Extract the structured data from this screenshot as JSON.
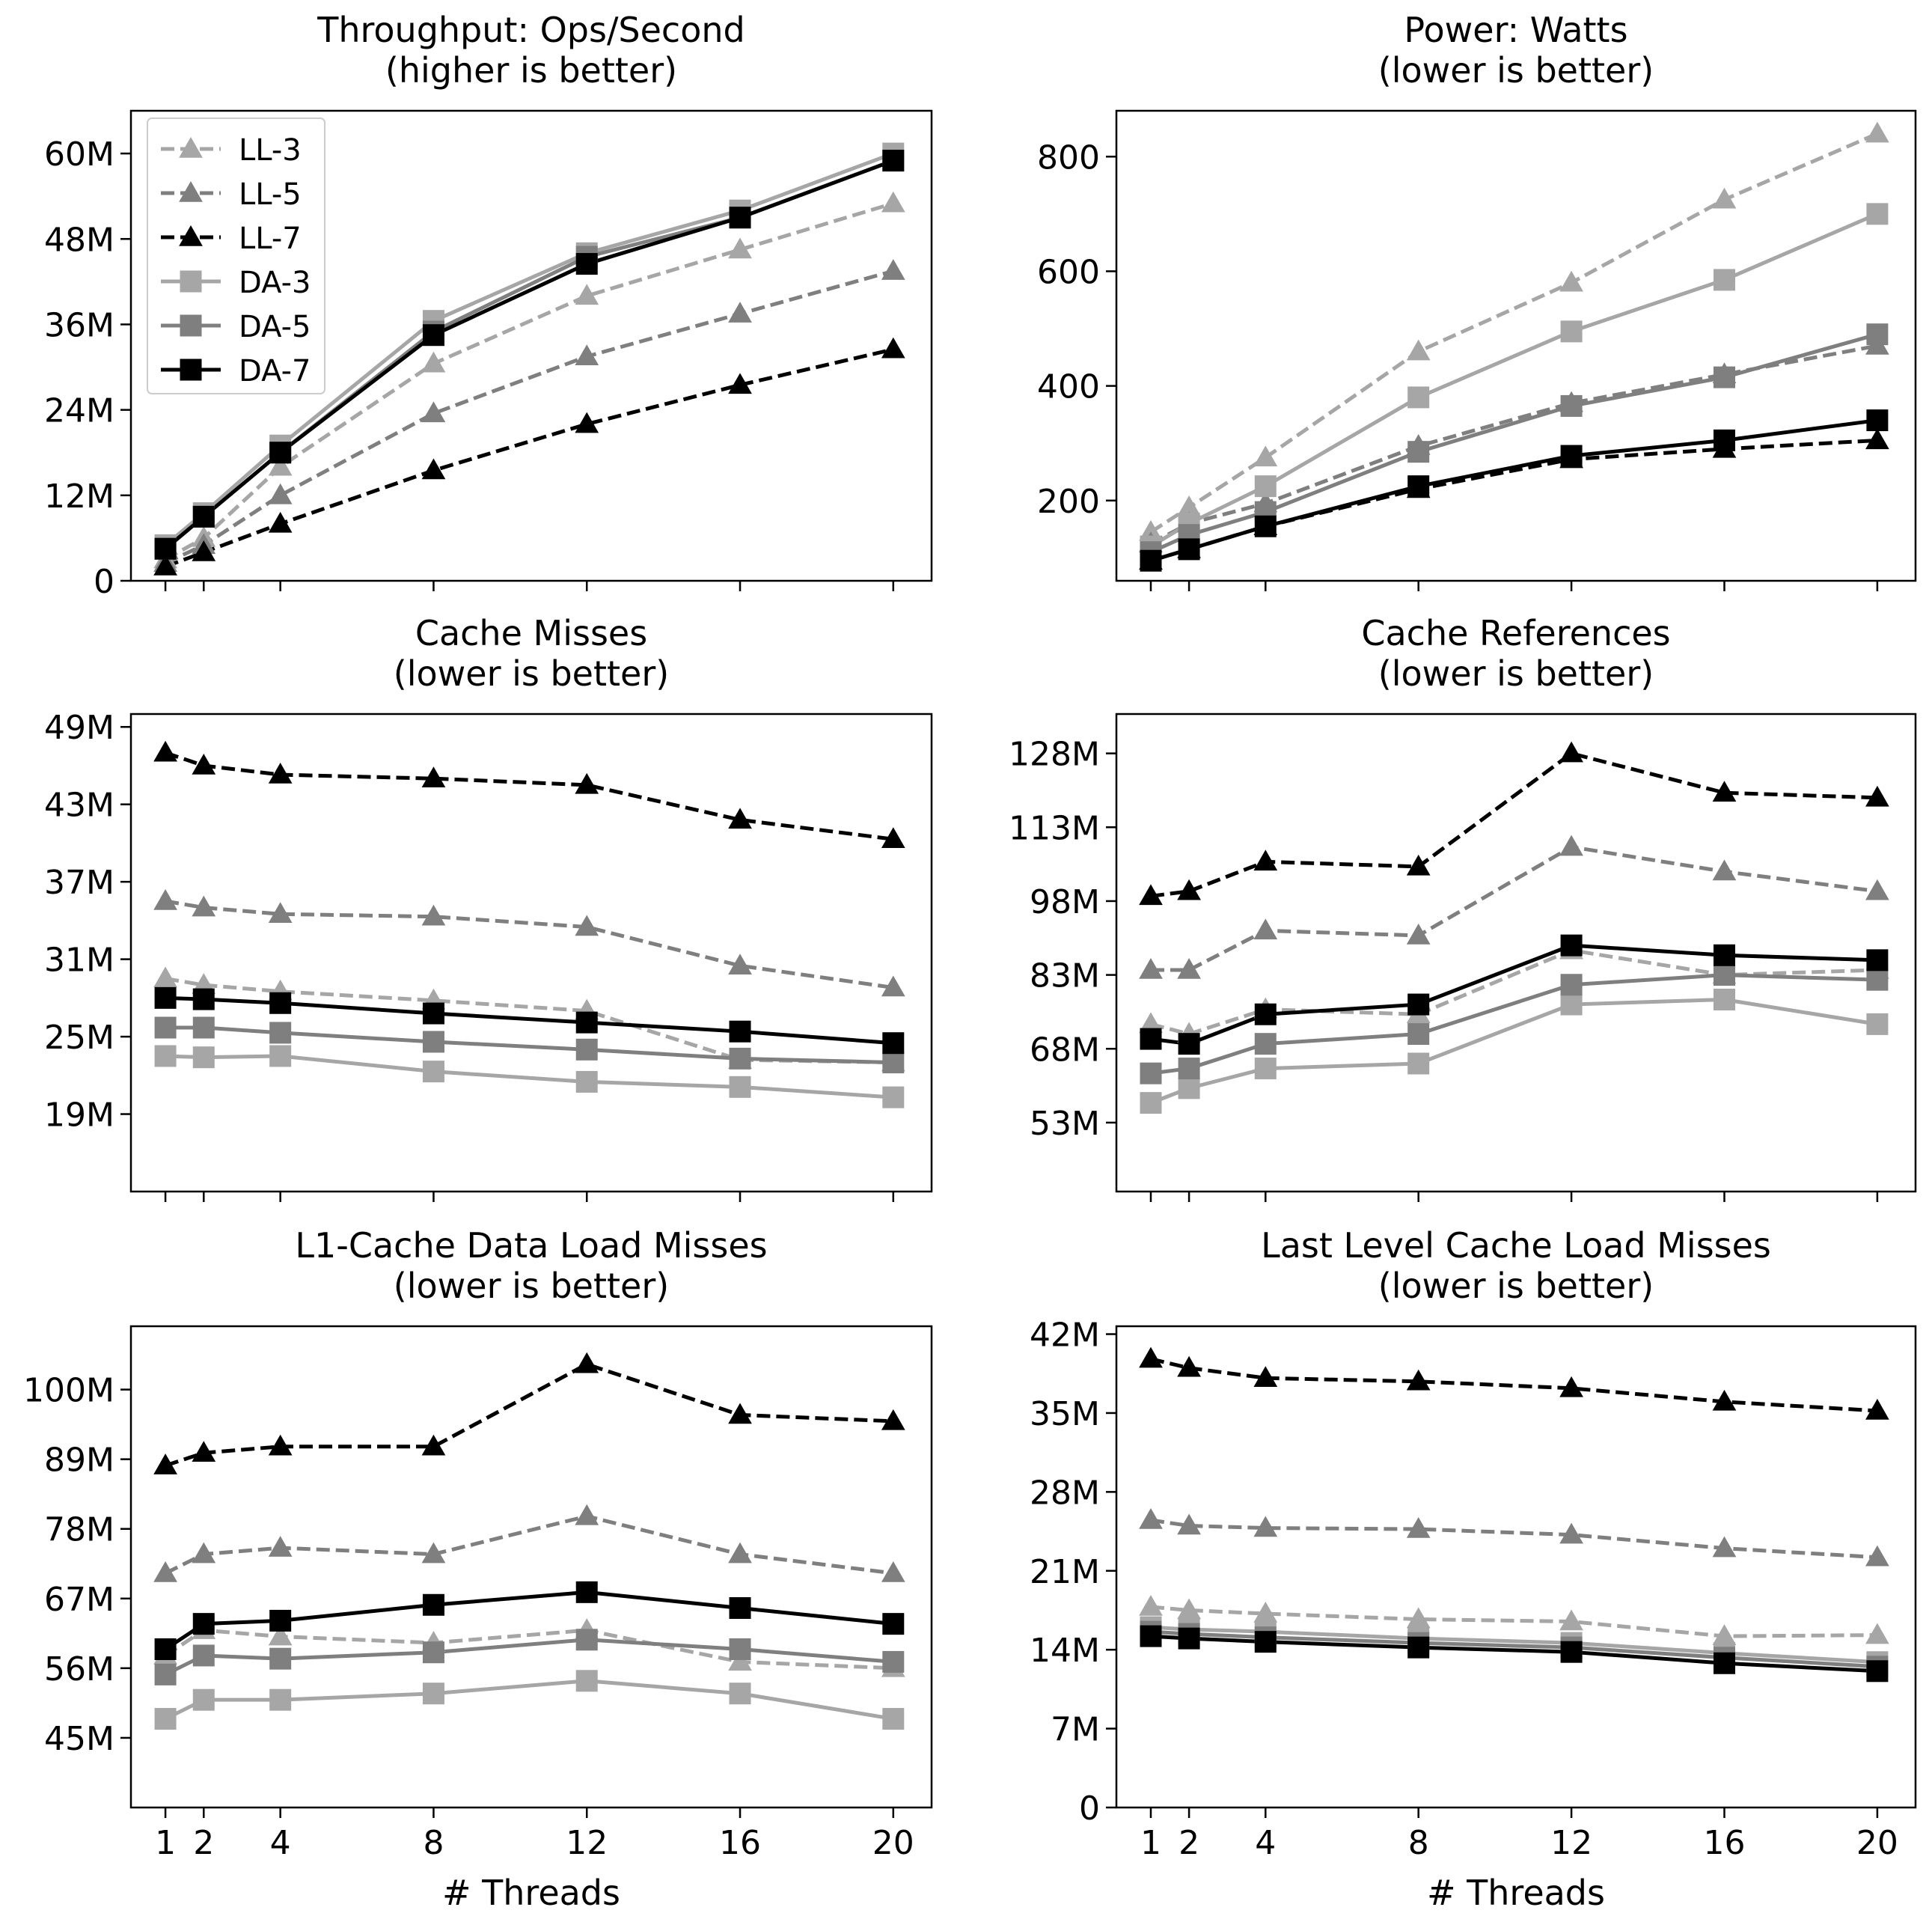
{
  "figure": {
    "xlabel": "# Threads",
    "x_ticks": [
      "1",
      "2",
      "4",
      "8",
      "12",
      "16",
      "20"
    ],
    "legend": [
      "LL-3",
      "LL-5",
      "LL-7",
      "DA-3",
      "DA-5",
      "DA-7"
    ]
  },
  "series_style": {
    "LL-3": {
      "color": "#a6a6a6",
      "dash": true,
      "marker": "triangle"
    },
    "LL-5": {
      "color": "#7f7f7f",
      "dash": true,
      "marker": "triangle"
    },
    "LL-7": {
      "color": "#000000",
      "dash": true,
      "marker": "triangle"
    },
    "DA-3": {
      "color": "#a6a6a6",
      "dash": false,
      "marker": "square"
    },
    "DA-5": {
      "color": "#7f7f7f",
      "dash": false,
      "marker": "square"
    },
    "DA-7": {
      "color": "#000000",
      "dash": false,
      "marker": "square"
    }
  },
  "chart_data": [
    {
      "type": "line",
      "title": "Throughput: Ops/Second",
      "subtitle": "(higher is better)",
      "x": [
        1,
        2,
        4,
        8,
        12,
        16,
        20
      ],
      "xlim": [
        0.1,
        21
      ],
      "ylim": [
        0,
        66
      ],
      "yticks": [
        0,
        12,
        24,
        36,
        48,
        60
      ],
      "ytick_labels": [
        "0",
        "12M",
        "24M",
        "36M",
        "48M",
        "60M"
      ],
      "legend_position": "upper-left",
      "series": [
        {
          "name": "LL-3",
          "values": [
            3.0,
            6.0,
            16.0,
            30.5,
            40.0,
            46.5,
            53.0
          ]
        },
        {
          "name": "LL-5",
          "values": [
            2.5,
            5.0,
            12.0,
            23.5,
            31.5,
            37.5,
            43.5
          ]
        },
        {
          "name": "LL-7",
          "values": [
            2.0,
            4.0,
            8.0,
            15.5,
            22.0,
            27.5,
            32.5
          ]
        },
        {
          "name": "DA-3",
          "values": [
            5.0,
            9.5,
            19.0,
            36.5,
            46.0,
            52.0,
            60.0
          ]
        },
        {
          "name": "DA-5",
          "values": [
            4.5,
            9.0,
            18.0,
            35.0,
            45.5,
            51.0,
            59.0
          ]
        },
        {
          "name": "DA-7",
          "values": [
            4.5,
            9.0,
            18.0,
            34.5,
            44.5,
            51.0,
            59.0
          ]
        }
      ]
    },
    {
      "type": "line",
      "title": "Power: Watts",
      "subtitle": "(lower is better)",
      "x": [
        1,
        2,
        4,
        8,
        12,
        16,
        20
      ],
      "xlim": [
        0.1,
        21
      ],
      "ylim": [
        60,
        880
      ],
      "yticks": [
        200,
        400,
        600,
        800
      ],
      "ytick_labels": [
        "200",
        "400",
        "600",
        "800"
      ],
      "series": [
        {
          "name": "LL-3",
          "values": [
            145,
            188,
            275,
            460,
            580,
            725,
            840
          ]
        },
        {
          "name": "LL-5",
          "values": [
            125,
            160,
            195,
            295,
            370,
            420,
            470
          ]
        },
        {
          "name": "LL-7",
          "values": [
            95,
            115,
            155,
            220,
            272,
            290,
            305
          ]
        },
        {
          "name": "DA-3",
          "values": [
            120,
            160,
            225,
            380,
            495,
            585,
            700
          ]
        },
        {
          "name": "DA-5",
          "values": [
            110,
            140,
            180,
            285,
            365,
            415,
            490
          ]
        },
        {
          "name": "DA-7",
          "values": [
            95,
            115,
            155,
            225,
            278,
            305,
            340
          ]
        }
      ]
    },
    {
      "type": "line",
      "title": "Cache Misses",
      "subtitle": "(lower is better)",
      "x": [
        1,
        2,
        4,
        8,
        12,
        16,
        20
      ],
      "xlim": [
        0.1,
        21
      ],
      "ylim": [
        13,
        50
      ],
      "yticks": [
        19,
        25,
        31,
        37,
        43,
        49
      ],
      "ytick_labels": [
        "19M",
        "25M",
        "31M",
        "37M",
        "43M",
        "49M"
      ],
      "series": [
        {
          "name": "LL-3",
          "values": [
            29.5,
            29.0,
            28.5,
            27.8,
            27.0,
            23.2,
            23.0
          ]
        },
        {
          "name": "LL-5",
          "values": [
            35.5,
            35.0,
            34.5,
            34.3,
            33.5,
            30.5,
            28.8
          ]
        },
        {
          "name": "LL-7",
          "values": [
            47.0,
            46.0,
            45.3,
            45.0,
            44.5,
            41.8,
            40.3
          ]
        },
        {
          "name": "DA-3",
          "values": [
            23.5,
            23.4,
            23.5,
            22.3,
            21.5,
            21.1,
            20.3
          ]
        },
        {
          "name": "DA-5",
          "values": [
            25.7,
            25.7,
            25.3,
            24.6,
            24.0,
            23.3,
            23.0
          ]
        },
        {
          "name": "DA-7",
          "values": [
            28.0,
            27.9,
            27.6,
            26.8,
            26.1,
            25.4,
            24.5
          ]
        }
      ]
    },
    {
      "type": "line",
      "title": "Cache References",
      "subtitle": "(lower is better)",
      "x": [
        1,
        2,
        4,
        8,
        12,
        16,
        20
      ],
      "xlim": [
        0.1,
        21
      ],
      "ylim": [
        39,
        136
      ],
      "yticks": [
        53,
        68,
        83,
        98,
        113,
        128
      ],
      "ytick_labels": [
        "53M",
        "68M",
        "83M",
        "98M",
        "113M",
        "128M"
      ],
      "series": [
        {
          "name": "LL-3",
          "values": [
            73,
            71,
            76,
            75,
            88,
            83,
            84
          ]
        },
        {
          "name": "LL-5",
          "values": [
            84,
            84,
            92,
            91,
            109,
            104,
            100
          ]
        },
        {
          "name": "LL-7",
          "values": [
            99,
            100,
            106,
            105,
            128,
            120,
            119
          ]
        },
        {
          "name": "DA-3",
          "values": [
            57,
            60,
            64,
            65,
            77,
            78,
            73
          ]
        },
        {
          "name": "DA-5",
          "values": [
            63,
            64,
            69,
            71,
            81,
            83,
            82
          ]
        },
        {
          "name": "DA-7",
          "values": [
            70,
            69,
            75,
            77,
            89,
            87,
            86
          ]
        }
      ]
    },
    {
      "type": "line",
      "title": "L1-Cache Data Load Misses",
      "subtitle": "(lower is better)",
      "x": [
        1,
        2,
        4,
        8,
        12,
        16,
        20
      ],
      "xlim": [
        0.1,
        21
      ],
      "ylim": [
        34,
        110
      ],
      "yticks": [
        45,
        56,
        67,
        78,
        89,
        100
      ],
      "ytick_labels": [
        "45M",
        "56M",
        "67M",
        "78M",
        "89M",
        "100M"
      ],
      "series": [
        {
          "name": "LL-3",
          "values": [
            58,
            62,
            61,
            60,
            62,
            57,
            56
          ]
        },
        {
          "name": "LL-5",
          "values": [
            71,
            74,
            75,
            74,
            80,
            74,
            71
          ]
        },
        {
          "name": "LL-7",
          "values": [
            88,
            90,
            91,
            91,
            104,
            96,
            95
          ]
        },
        {
          "name": "DA-3",
          "values": [
            48,
            51,
            51,
            52,
            54,
            52,
            48
          ]
        },
        {
          "name": "DA-5",
          "values": [
            55,
            58,
            57.5,
            58.5,
            60.5,
            59,
            57
          ]
        },
        {
          "name": "DA-7",
          "values": [
            59,
            63,
            63.5,
            66,
            68,
            65.5,
            63
          ]
        }
      ]
    },
    {
      "type": "line",
      "title": "Last Level Cache Load Misses",
      "subtitle": "(lower is better)",
      "x": [
        1,
        2,
        4,
        8,
        12,
        16,
        20
      ],
      "xlim": [
        0.1,
        21
      ],
      "ylim": [
        0,
        42.7
      ],
      "yticks": [
        0,
        7,
        14,
        21,
        28,
        35,
        42
      ],
      "ytick_labels": [
        "0",
        "7M",
        "14M",
        "21M",
        "28M",
        "35M",
        "42M"
      ],
      "series": [
        {
          "name": "LL-3",
          "values": [
            17.8,
            17.5,
            17.2,
            16.7,
            16.5,
            15.2,
            15.3
          ]
        },
        {
          "name": "LL-5",
          "values": [
            25.5,
            25.0,
            24.8,
            24.7,
            24.2,
            23.0,
            22.2
          ]
        },
        {
          "name": "LL-7",
          "values": [
            39.8,
            39.0,
            38.1,
            37.8,
            37.2,
            36.0,
            35.2
          ]
        },
        {
          "name": "DA-3",
          "values": [
            16.0,
            15.8,
            15.6,
            15.0,
            14.6,
            13.7,
            12.9
          ]
        },
        {
          "name": "DA-5",
          "values": [
            15.6,
            15.4,
            15.1,
            14.6,
            14.2,
            13.3,
            12.5
          ]
        },
        {
          "name": "DA-7",
          "values": [
            15.2,
            15.0,
            14.7,
            14.2,
            13.8,
            12.8,
            12.1
          ]
        }
      ]
    }
  ]
}
